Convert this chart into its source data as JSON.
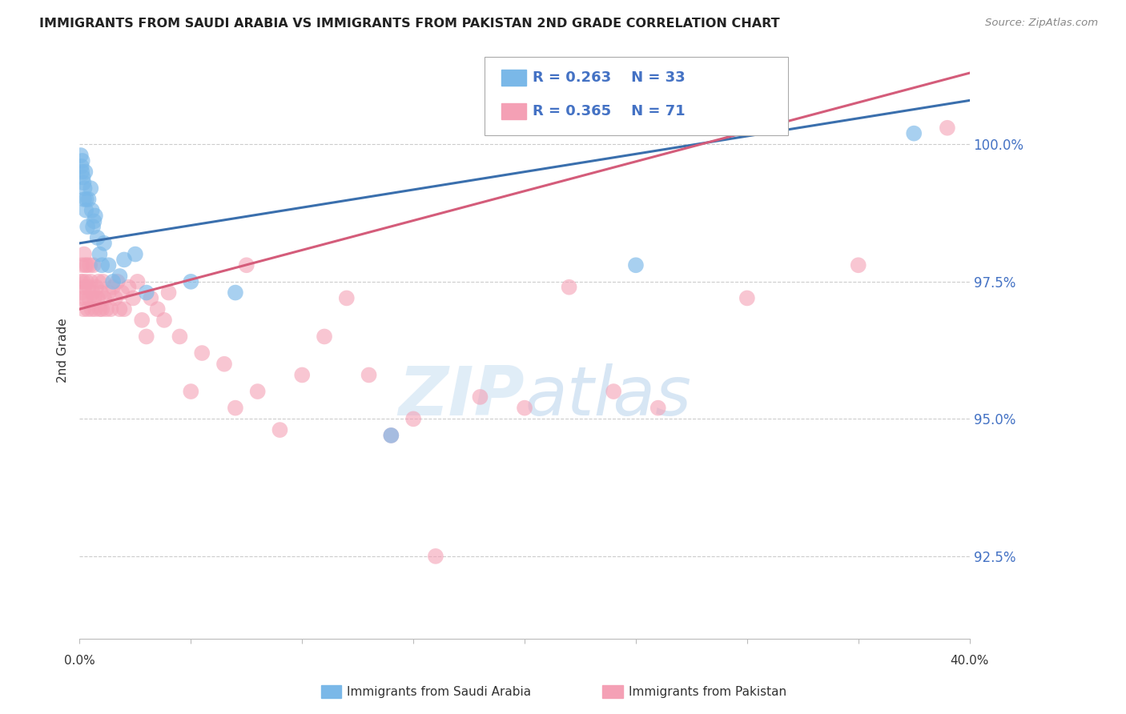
{
  "title": "IMMIGRANTS FROM SAUDI ARABIA VS IMMIGRANTS FROM PAKISTAN 2ND GRADE CORRELATION CHART",
  "source": "Source: ZipAtlas.com",
  "ylabel": "2nd Grade",
  "xlim": [
    0.0,
    40.0
  ],
  "ylim": [
    91.0,
    101.5
  ],
  "yticks": [
    92.5,
    95.0,
    97.5,
    100.0
  ],
  "ytick_labels": [
    "92.5%",
    "95.0%",
    "97.5%",
    "100.0%"
  ],
  "blue_color": "#7ab8e8",
  "pink_color": "#f4a0b5",
  "blue_line_color": "#3a6fad",
  "pink_line_color": "#d45c7a",
  "blue_R": 0.263,
  "blue_N": 33,
  "pink_R": 0.365,
  "pink_N": 71,
  "legend_label_blue": "Immigrants from Saudi Arabia",
  "legend_label_pink": "Immigrants from Pakistan",
  "blue_line_x0": 0.0,
  "blue_line_y0": 98.2,
  "blue_line_x1": 40.0,
  "blue_line_y1": 100.8,
  "pink_line_x0": 0.0,
  "pink_line_y0": 97.0,
  "pink_line_x1": 40.0,
  "pink_line_y1": 101.3,
  "blue_x": [
    0.05,
    0.08,
    0.1,
    0.12,
    0.15,
    0.18,
    0.2,
    0.22,
    0.25,
    0.28,
    0.3,
    0.35,
    0.4,
    0.5,
    0.55,
    0.6,
    0.65,
    0.7,
    0.8,
    0.9,
    1.0,
    1.1,
    1.3,
    1.5,
    1.8,
    2.0,
    2.5,
    3.0,
    5.0,
    7.0,
    14.0,
    25.0,
    37.5
  ],
  "blue_y": [
    99.8,
    99.6,
    99.5,
    99.7,
    99.4,
    99.3,
    99.0,
    99.2,
    99.5,
    98.8,
    99.0,
    98.5,
    99.0,
    99.2,
    98.8,
    98.5,
    98.6,
    98.7,
    98.3,
    98.0,
    97.8,
    98.2,
    97.8,
    97.5,
    97.6,
    97.9,
    98.0,
    97.3,
    97.5,
    97.3,
    94.7,
    97.8,
    100.2
  ],
  "pink_x": [
    0.05,
    0.08,
    0.1,
    0.12,
    0.15,
    0.18,
    0.2,
    0.22,
    0.25,
    0.28,
    0.3,
    0.33,
    0.36,
    0.4,
    0.43,
    0.46,
    0.5,
    0.54,
    0.58,
    0.62,
    0.65,
    0.7,
    0.75,
    0.8,
    0.85,
    0.9,
    0.95,
    1.0,
    1.05,
    1.1,
    1.2,
    1.3,
    1.4,
    1.5,
    1.6,
    1.7,
    1.8,
    1.9,
    2.0,
    2.2,
    2.4,
    2.6,
    2.8,
    3.0,
    3.2,
    3.5,
    3.8,
    4.0,
    4.5,
    5.0,
    5.5,
    6.5,
    7.0,
    7.5,
    8.0,
    9.0,
    10.0,
    11.0,
    12.0,
    13.0,
    14.0,
    15.0,
    16.0,
    18.0,
    20.0,
    22.0,
    24.0,
    26.0,
    30.0,
    35.0,
    39.0
  ],
  "pink_y": [
    97.5,
    97.3,
    97.8,
    97.2,
    97.5,
    97.0,
    98.0,
    97.4,
    97.8,
    97.2,
    97.5,
    97.8,
    97.0,
    97.4,
    97.2,
    97.8,
    97.5,
    97.0,
    97.3,
    97.8,
    97.2,
    97.0,
    97.4,
    97.2,
    97.5,
    97.0,
    97.3,
    97.0,
    97.5,
    97.2,
    97.0,
    97.3,
    97.0,
    97.4,
    97.2,
    97.5,
    97.0,
    97.3,
    97.0,
    97.4,
    97.2,
    97.5,
    96.8,
    96.5,
    97.2,
    97.0,
    96.8,
    97.3,
    96.5,
    95.5,
    96.2,
    96.0,
    95.2,
    97.8,
    95.5,
    94.8,
    95.8,
    96.5,
    97.2,
    95.8,
    94.7,
    95.0,
    92.5,
    95.4,
    95.2,
    97.4,
    95.5,
    95.2,
    97.2,
    97.8,
    100.3
  ]
}
